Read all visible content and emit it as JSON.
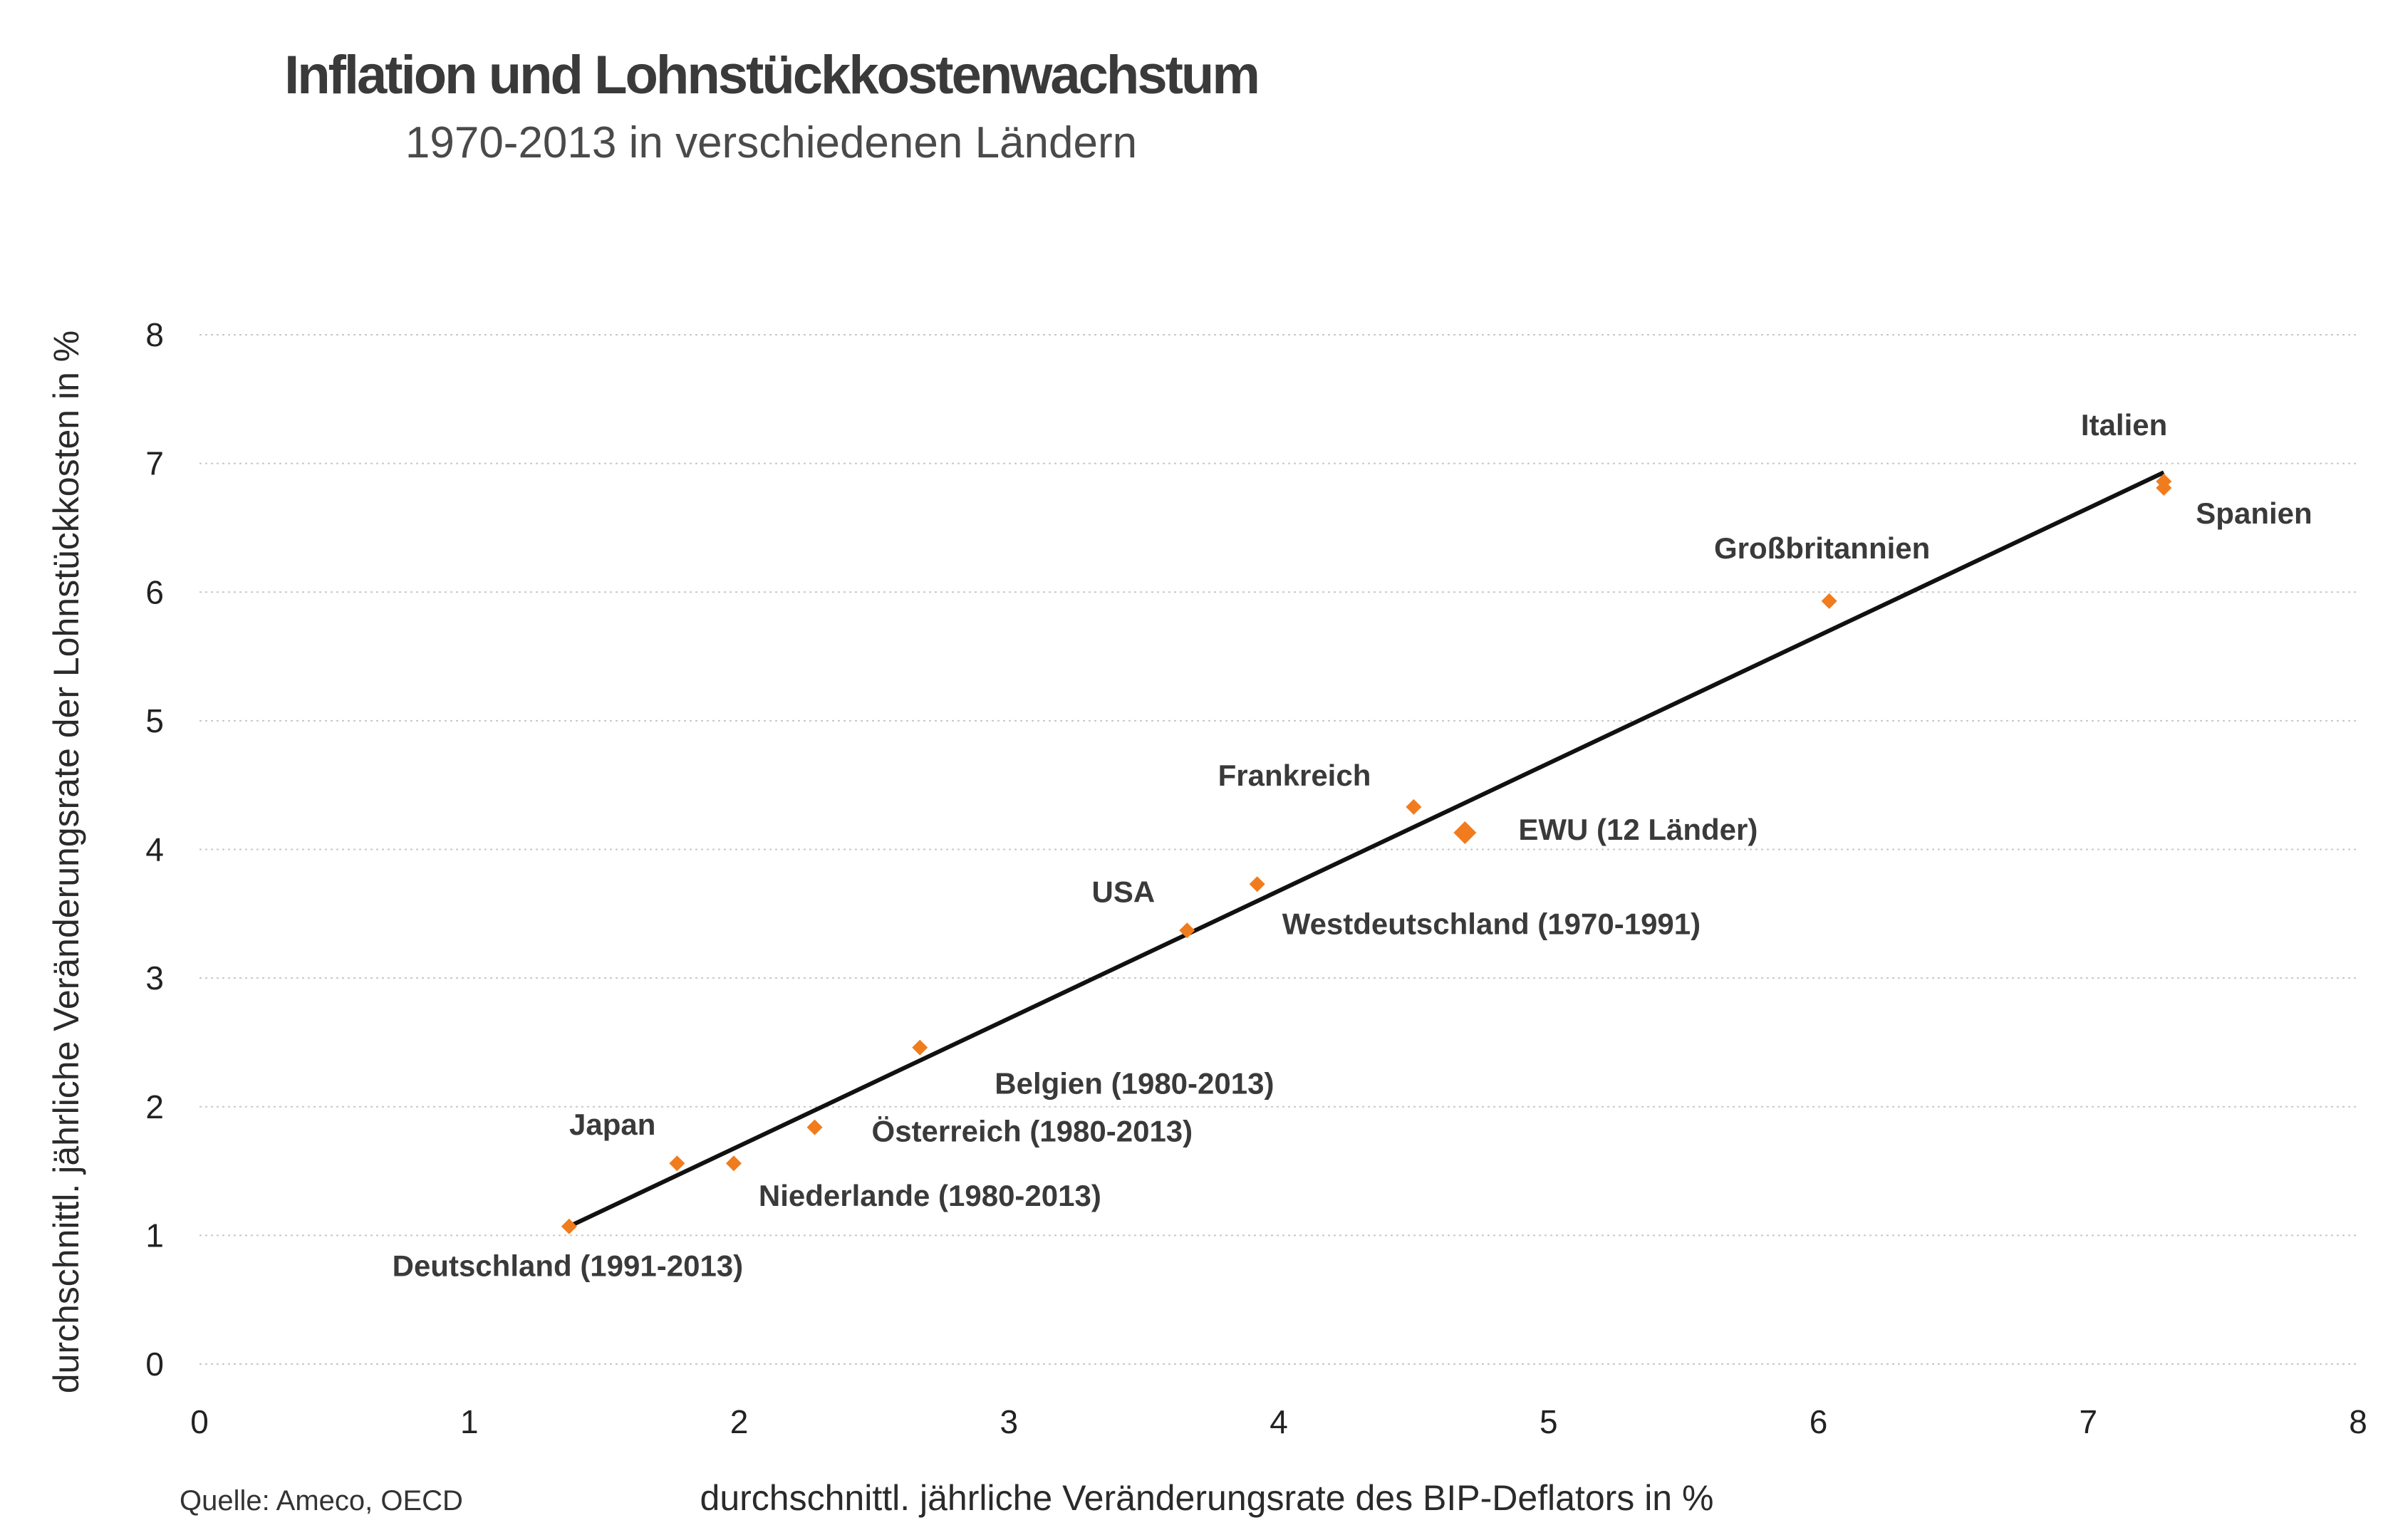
{
  "header": {
    "title": "Inflation und Lohnstückkostenwachstum",
    "subtitle": "1970-2013 in verschiedenen Ländern"
  },
  "footer": {
    "source": "Quelle: Ameco, OECD"
  },
  "colors": {
    "marker": "#f07c1e",
    "trendline": "#111111",
    "grid": "#c8c8c8"
  },
  "chart_data": {
    "type": "scatter",
    "xlabel": "durchschnittl. jährliche Veränderungsrate des BIP-Deflators in %",
    "ylabel": "durchschnittl. jährliche Veränderungsrate der Lohnstückkosten in %",
    "xlim": [
      0,
      8
    ],
    "ylim": [
      0,
      8
    ],
    "xticks": [
      "0",
      "1",
      "2",
      "3",
      "4",
      "5",
      "6",
      "7",
      "8"
    ],
    "yticks": [
      "0",
      "1",
      "2",
      "3",
      "4",
      "5",
      "6",
      "7",
      "8"
    ],
    "grid": "horizontal dotted",
    "points": [
      {
        "label": "Deutschland (1991-2013)",
        "x": 1.37,
        "y": 1.07,
        "highlight": false,
        "label_pos": "below-left"
      },
      {
        "label": "Japan",
        "x": 1.77,
        "y": 1.56,
        "highlight": false,
        "label_pos": "above-left"
      },
      {
        "label": "Niederlande (1980-2013)",
        "x": 1.98,
        "y": 1.56,
        "highlight": false,
        "label_pos": "below-right"
      },
      {
        "label": "Österreich (1980-2013)",
        "x": 2.28,
        "y": 1.84,
        "highlight": false,
        "label_pos": "right"
      },
      {
        "label": "Belgien (1980-2013)",
        "x": 2.67,
        "y": 2.46,
        "highlight": false,
        "label_pos": "below-right"
      },
      {
        "label": "USA",
        "x": 3.66,
        "y": 3.37,
        "highlight": false,
        "label_pos": "above-left"
      },
      {
        "label": "Westdeutschland (1970-1991)",
        "x": 3.92,
        "y": 3.73,
        "highlight": false,
        "label_pos": "below-right"
      },
      {
        "label": "Frankreich",
        "x": 4.5,
        "y": 4.33,
        "highlight": false,
        "label_pos": "above-left"
      },
      {
        "label": "EWU (12 Länder)",
        "x": 4.69,
        "y": 4.13,
        "highlight": true,
        "label_pos": "right"
      },
      {
        "label": "Großbritannien",
        "x": 6.04,
        "y": 5.93,
        "highlight": false,
        "label_pos": "above"
      },
      {
        "label": "Italien",
        "x": 7.28,
        "y": 6.86,
        "highlight": false,
        "label_pos": "above-left"
      },
      {
        "label": "Spanien",
        "x": 7.28,
        "y": 6.81,
        "highlight": false,
        "label_pos": "below-right"
      }
    ],
    "trendline": {
      "x": [
        1.37,
        7.28
      ],
      "y": [
        1.07,
        6.93
      ]
    }
  }
}
